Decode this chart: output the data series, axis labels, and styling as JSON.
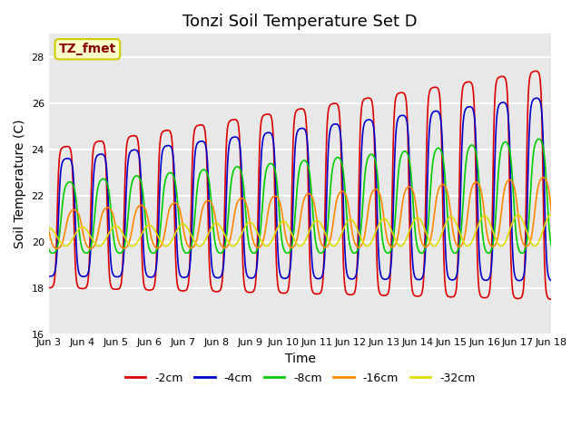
{
  "title": "Tonzi Soil Temperature Set D",
  "xlabel": "Time",
  "ylabel": "Soil Temperature (C)",
  "ylim": [
    16,
    29
  ],
  "annotation_text": "TZ_fmet",
  "annotation_bg": "#ffffcc",
  "annotation_border": "#cccc00",
  "annotation_text_color": "#880000",
  "bg_color": "#e8e8e8",
  "grid_color": "white",
  "line_colors": [
    "#dd0000",
    "#0000cc",
    "#00cc00",
    "#ff8800",
    "#dddd00"
  ],
  "line_labels": [
    "-2cm",
    "-4cm",
    "-8cm",
    "-16cm",
    "-32cm"
  ],
  "x_tick_labels": [
    "Jun 3",
    "Jun 4",
    "Jun 5",
    "Jun 6",
    "Jun 7",
    "Jun 8",
    "Jun 9",
    "Jun 10",
    "Jun 11",
    "Jun 12",
    "Jun 13",
    "Jun 14",
    "Jun 15",
    "Jun 16",
    "Jun 17",
    "Jun 18"
  ],
  "yticks": [
    16,
    18,
    20,
    22,
    24,
    26,
    28
  ],
  "title_fontsize": 13,
  "axis_label_fontsize": 10,
  "tick_fontsize": 8
}
